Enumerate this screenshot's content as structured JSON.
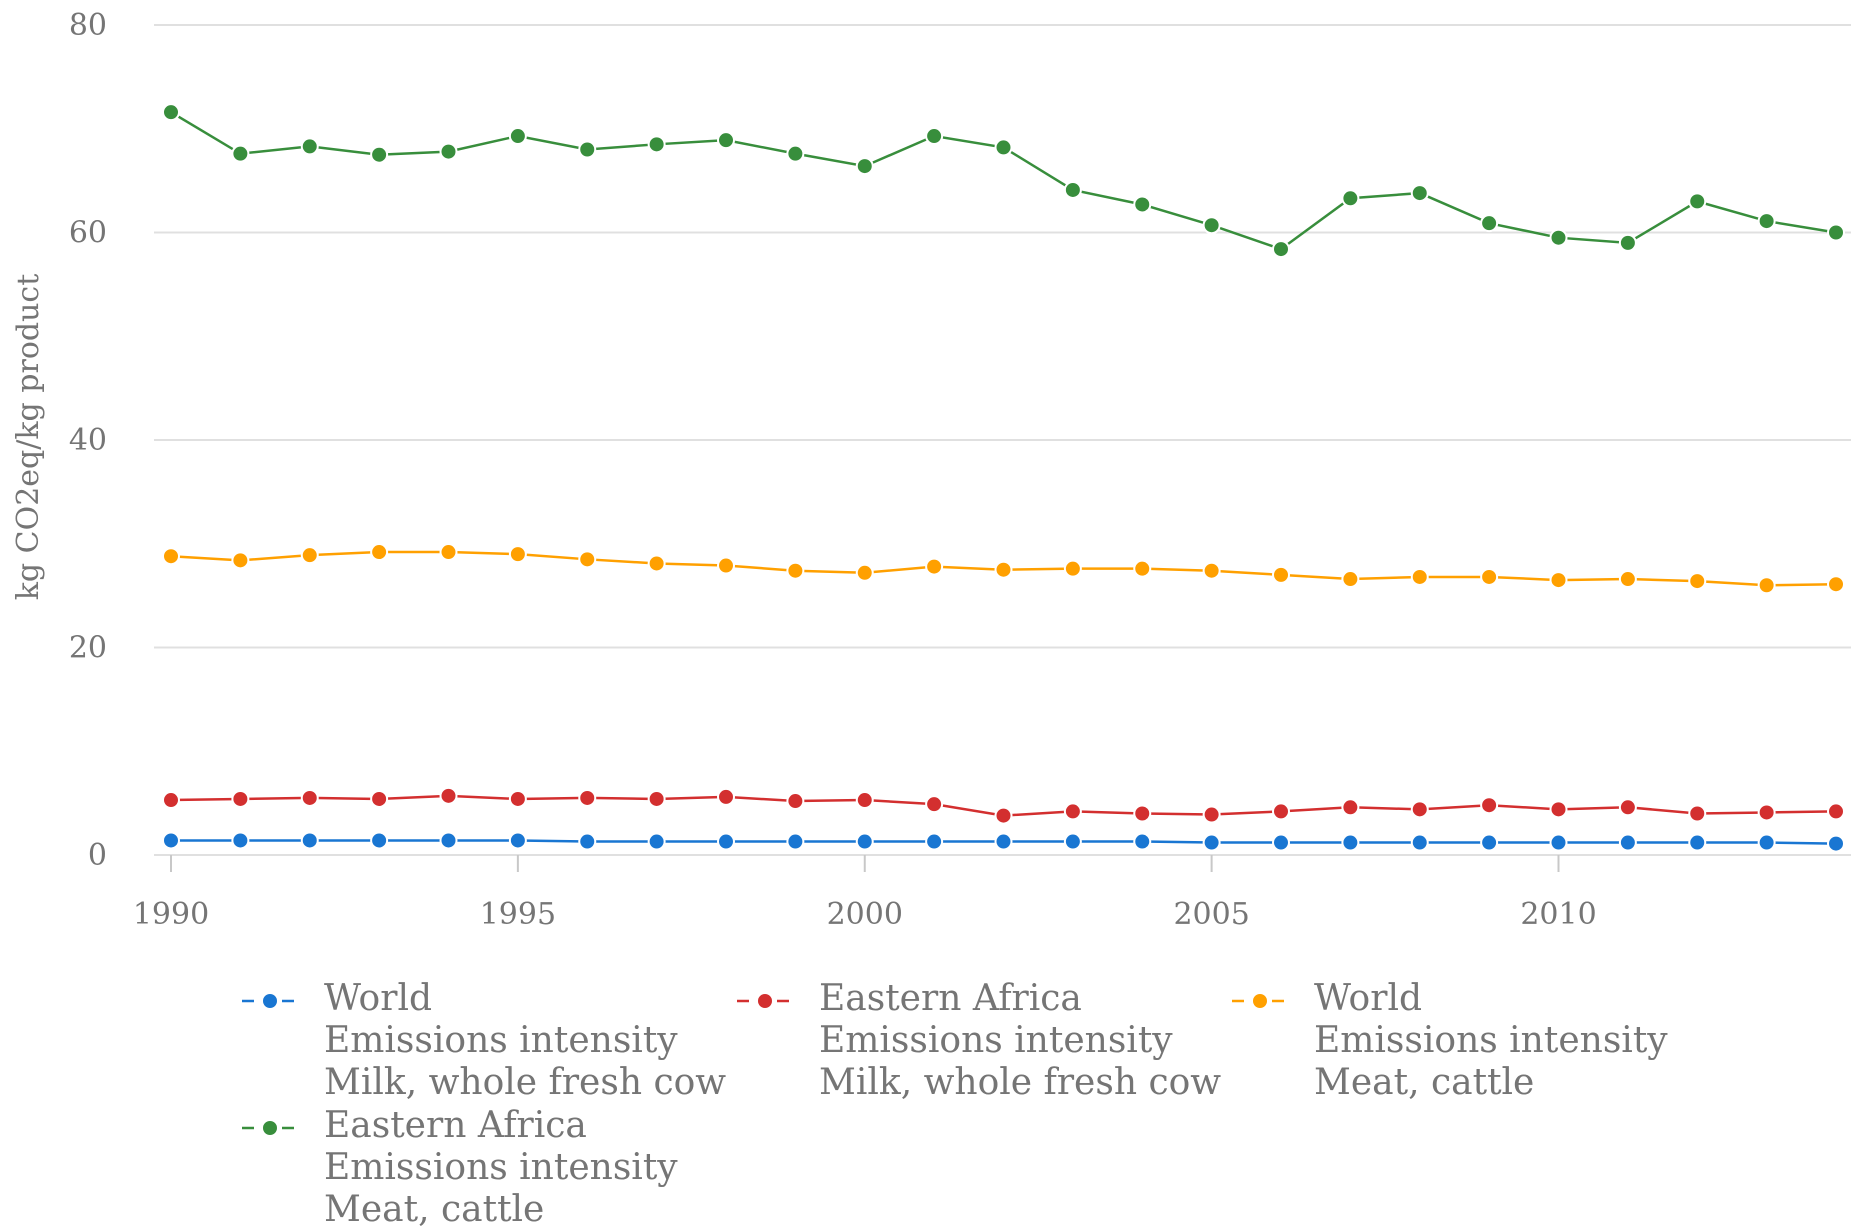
{
  "chart_data": {
    "type": "line",
    "title": "",
    "xlabel": "",
    "ylabel": "kg CO2eq/kg product",
    "ylim": [
      0,
      80
    ],
    "xlim": [
      1990,
      2014
    ],
    "yticks": [
      "0",
      "20",
      "40",
      "60",
      "80"
    ],
    "xticks": [
      "1990",
      "1995",
      "2000",
      "2005",
      "2010"
    ],
    "grid": "horizontal",
    "legend_position": "bottom",
    "x": [
      1990,
      1991,
      1992,
      1993,
      1994,
      1995,
      1996,
      1997,
      1998,
      1999,
      2000,
      2001,
      2002,
      2003,
      2004,
      2005,
      2006,
      2007,
      2008,
      2009,
      2010,
      2011,
      2012,
      2013,
      2014
    ],
    "series": [
      {
        "name_lines": [
          "World",
          "Emissions intensity",
          "Milk, whole fresh cow"
        ],
        "color": "#1976d2",
        "values": [
          1.4,
          1.4,
          1.4,
          1.4,
          1.4,
          1.4,
          1.3,
          1.3,
          1.3,
          1.3,
          1.3,
          1.3,
          1.3,
          1.3,
          1.3,
          1.2,
          1.2,
          1.2,
          1.2,
          1.2,
          1.2,
          1.2,
          1.2,
          1.2,
          1.1
        ]
      },
      {
        "name_lines": [
          "Eastern Africa",
          "Emissions intensity",
          "Milk, whole fresh cow"
        ],
        "color": "#d32f2f",
        "values": [
          5.3,
          5.4,
          5.5,
          5.4,
          5.7,
          5.4,
          5.5,
          5.4,
          5.6,
          5.2,
          5.3,
          4.9,
          3.8,
          4.2,
          4.0,
          3.9,
          4.2,
          4.6,
          4.4,
          4.8,
          4.4,
          4.6,
          4.0,
          4.1,
          4.2
        ]
      },
      {
        "name_lines": [
          "World",
          "Emissions intensity",
          "Meat, cattle"
        ],
        "color": "#ffa000",
        "values": [
          28.8,
          28.4,
          28.9,
          29.2,
          29.2,
          29.0,
          28.5,
          28.1,
          27.9,
          27.4,
          27.2,
          27.8,
          27.5,
          27.6,
          27.6,
          27.4,
          27.0,
          26.6,
          26.8,
          26.8,
          26.5,
          26.6,
          26.4,
          26.0,
          26.1
        ]
      },
      {
        "name_lines": [
          "Eastern Africa",
          "Emissions intensity",
          "Meat, cattle"
        ],
        "color": "#388e3c",
        "values": [
          71.6,
          67.6,
          68.3,
          67.5,
          67.8,
          69.3,
          68.0,
          68.5,
          68.9,
          67.6,
          66.4,
          69.3,
          68.2,
          64.1,
          62.7,
          60.7,
          58.4,
          63.3,
          63.8,
          60.9,
          59.5,
          59.0,
          63.0,
          61.1,
          60.0
        ]
      }
    ]
  }
}
